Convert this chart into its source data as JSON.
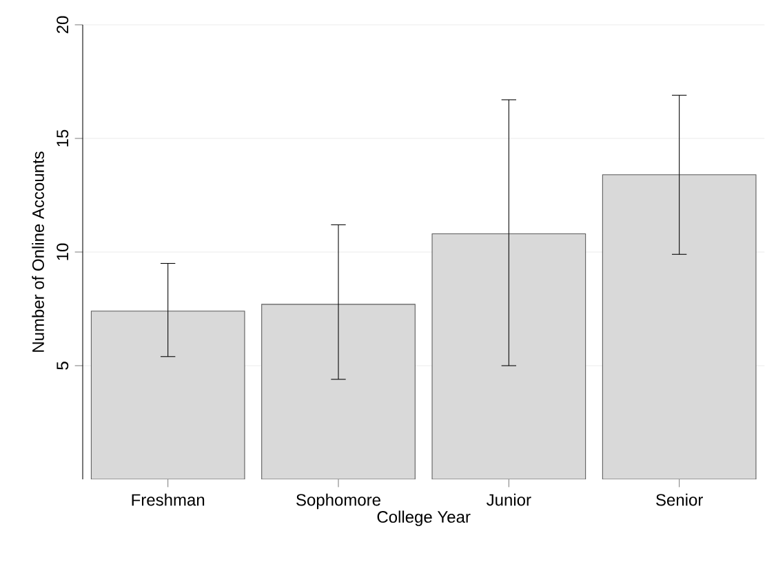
{
  "chart_data": {
    "type": "bar",
    "xlabel": "College Year",
    "ylabel": "Number of Online Accounts",
    "categories": [
      "Freshman",
      "Sophomore",
      "Junior",
      "Senior"
    ],
    "values": [
      7.4,
      7.7,
      10.8,
      13.4
    ],
    "errors": [
      [
        5.4,
        9.5
      ],
      [
        4.4,
        11.2
      ],
      [
        5.0,
        16.7
      ],
      [
        9.9,
        16.9
      ]
    ],
    "color": "#d9d9d9",
    "ylim": [
      0,
      20
    ],
    "yticks": [
      5,
      10,
      15,
      20
    ],
    "grid": "y"
  }
}
